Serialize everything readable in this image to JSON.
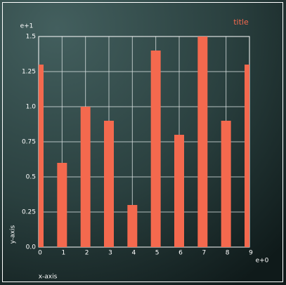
{
  "chart_data": {
    "type": "bar",
    "title": "title",
    "x_label": "x-axis",
    "y_label": "y-axis",
    "x_exponent_label": "e+0",
    "y_exponent_label": "e+1",
    "x": [
      0,
      1,
      2,
      3,
      4,
      5,
      6,
      7,
      8,
      9
    ],
    "values": [
      1.3,
      0.6,
      1.0,
      0.9,
      0.3,
      1.4,
      0.8,
      1.5,
      0.9,
      1.3
    ],
    "color": "#f4694e",
    "title_color": "#f4694e",
    "xlim": [
      0,
      9
    ],
    "xticks": [
      0,
      1,
      2,
      3,
      4,
      5,
      6,
      7,
      8,
      9
    ],
    "ylim": [
      0,
      1.5
    ],
    "yticks": [
      {
        "value": 0,
        "label": "0.0"
      },
      0.25,
      0.5,
      0.75,
      {
        "value": 1,
        "label": "1.0"
      },
      1.25,
      1.5
    ],
    "grid": true
  }
}
